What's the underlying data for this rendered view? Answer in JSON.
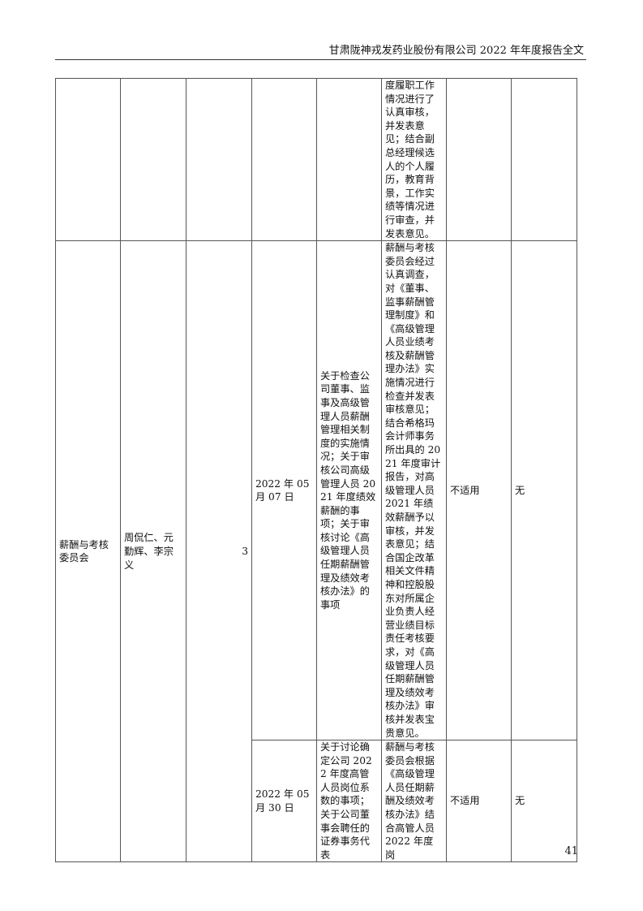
{
  "header": {
    "title": "甘肃陇神戎发药业股份有限公司 2022 年年度报告全文"
  },
  "rows": [
    {
      "details": "度履职工作情况进行了认真审核，并发表意见；结合副总经理候选人的个人履历，教育背景，工作实绩等情况进行审查，并发表意见。"
    },
    {
      "committee": "薪酬与考核委员会",
      "members": "周侃仁、元勤辉、李宗义",
      "meetings": "3",
      "date": "2022 年 05 月 07 日",
      "content": "关于检查公司董事、监事及高级管理人员薪酬管理相关制度的实施情况；关于审核公司高级管理人员 2021 年度绩效薪酬的事项；关于审核讨论《高级管理人员任期薪酬管理及绩效考核办法》的事项",
      "details": "薪酬与考核委员会经过认真调查，对《董事、监事薪酬管理制度》和《高级管理人员业绩考核及薪酬管理办法》实施情况进行检查并发表审核意见；结合希格玛会计师事务所出具的 2021 年度审计报告，对高级管理人员 2021 年绩效薪酬予以审核，并发表意见；结合国企改革相关文件精神和控股股东对所属企业负责人经营业绩目标责任考核要求，对《高级管理人员任期薪酬管理及绩效考核办法》审核并发表宝贵意见。",
      "other": "不适用",
      "objection": "无"
    },
    {
      "date": "2022 年 05 月 30 日",
      "content": "关于讨论确定公司 2022 年度高管人员岗位系数的事项；关于公司董事会聘任的证券事务代表",
      "details": "薪酬与考核委员会根据《高级管理人员任期薪酬及绩效考核办法》结合高管人员 2022 年度岗",
      "other": "不适用",
      "objection": "无"
    }
  ],
  "footer": {
    "page_number": "41"
  }
}
